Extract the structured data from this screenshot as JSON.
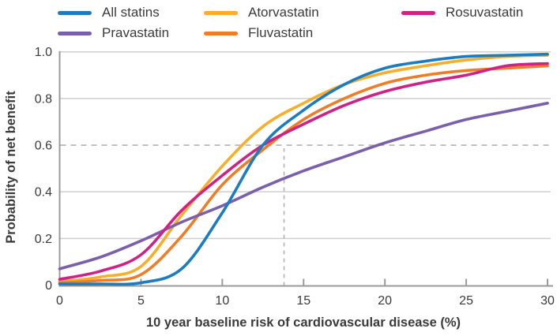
{
  "chart_data": {
    "type": "line",
    "title": "",
    "xlabel": "10 year baseline risk of cardiovascular disease (%)",
    "ylabel": "Probability of net benefit",
    "xlim": [
      0,
      30
    ],
    "ylim": [
      0,
      1.0
    ],
    "x_tick_labels": [
      "0",
      "5",
      "10",
      "15",
      "20",
      "25",
      "30"
    ],
    "x_tick_values": [
      0,
      5,
      10,
      15,
      20,
      25,
      30
    ],
    "y_tick_labels": [
      "0",
      "0.2",
      "0.4",
      "0.6",
      "0.8",
      "1.0"
    ],
    "y_tick_values": [
      0,
      0.2,
      0.4,
      0.6,
      0.8,
      1.0
    ],
    "grid": "horizontal gridlines; 0.6 line dashed",
    "legend_position": "top",
    "x": [
      0,
      2.5,
      5,
      7.5,
      10,
      12.5,
      15,
      17.5,
      20,
      22.5,
      25,
      27.5,
      30
    ],
    "series": [
      {
        "name": "Atorvastatin",
        "color": "#f9ae2b",
        "values": [
          0.015,
          0.035,
          0.08,
          0.3,
          0.51,
          0.68,
          0.78,
          0.86,
          0.91,
          0.94,
          0.965,
          0.98,
          0.985
        ]
      },
      {
        "name": "Fluvastatin",
        "color": "#ee7d26",
        "values": [
          0.01,
          0.02,
          0.045,
          0.21,
          0.43,
          0.58,
          0.71,
          0.8,
          0.865,
          0.9,
          0.92,
          0.93,
          0.94
        ]
      },
      {
        "name": "Pravastatin",
        "color": "#7a5fab",
        "values": [
          0.07,
          0.12,
          0.19,
          0.27,
          0.34,
          0.42,
          0.49,
          0.55,
          0.61,
          0.66,
          0.71,
          0.745,
          0.78
        ]
      },
      {
        "name": "Rosuvastatin",
        "color": "#ce2286",
        "values": [
          0.025,
          0.06,
          0.13,
          0.32,
          0.47,
          0.6,
          0.69,
          0.77,
          0.83,
          0.87,
          0.9,
          0.94,
          0.95
        ]
      },
      {
        "name": "All statins",
        "color": "#1b7cbf",
        "values": [
          0.005,
          0.005,
          0.01,
          0.07,
          0.31,
          0.6,
          0.75,
          0.86,
          0.93,
          0.96,
          0.98,
          0.985,
          0.99
        ]
      }
    ],
    "reference_lines": [
      {
        "type": "horizontal",
        "y": 0.6,
        "style": "dashed"
      },
      {
        "type": "vertical",
        "x": 13.8,
        "y_from": 0,
        "y_to": 0.6,
        "style": "dashed"
      }
    ]
  },
  "legend": {
    "rows": [
      [
        "All statins",
        "Atorvastatin",
        "Rosuvastatin"
      ],
      [
        "Pravastatin",
        "Fluvastatin"
      ]
    ]
  },
  "style": {
    "text_color": "#3b3b3b",
    "grid_color": "#cfcfcf",
    "dash_color": "#b3b3b3",
    "axis_color": "#9b9b9b",
    "background": "#ffffff"
  }
}
